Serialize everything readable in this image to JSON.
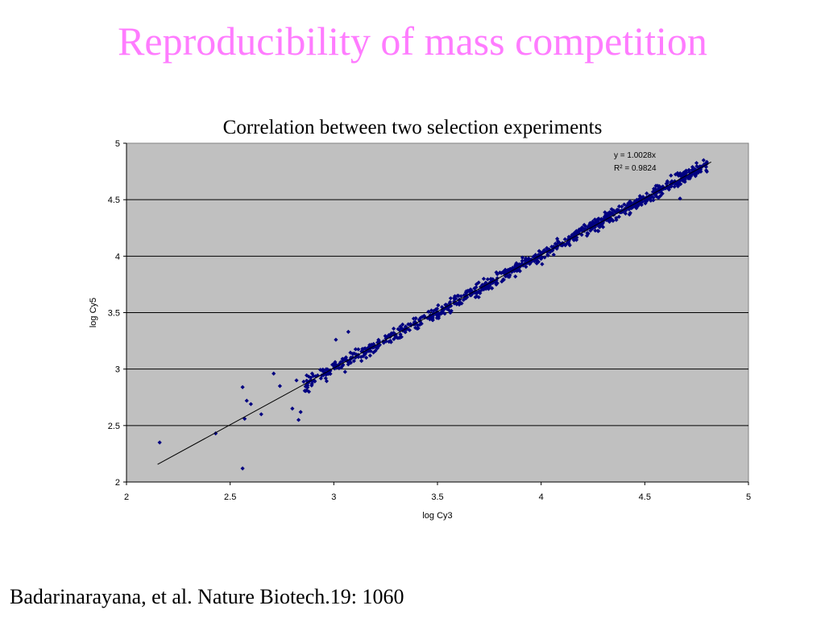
{
  "slide": {
    "title": "Reproducibility of mass competition",
    "citation": "Badarinarayana, et al. Nature Biotech.19: 1060"
  },
  "colors": {
    "title": "#ff7cff",
    "plot_background": "#c0c0c0",
    "marker": "#000080"
  },
  "chart_data": {
    "type": "scatter",
    "title": "Correlation between two selection experiments",
    "xlabel": "log Cy3",
    "ylabel": "log Cy5",
    "xlim": [
      2,
      5
    ],
    "ylim": [
      2,
      5
    ],
    "xticks": [
      "2",
      "2.5",
      "3",
      "3.5",
      "4",
      "4.5",
      "5"
    ],
    "yticks": [
      "2",
      "2.5",
      "3",
      "3.5",
      "4",
      "4.5",
      "5"
    ],
    "grid": "horizontal",
    "trendline": {
      "slope": 1.0028,
      "intercept": 0,
      "x_range": [
        2.15,
        4.82
      ]
    },
    "annotation": {
      "equation": "y = 1.0028x",
      "r_squared": "R² = 0.9824"
    },
    "outliers": [
      {
        "x": 2.16,
        "y": 2.35
      },
      {
        "x": 2.43,
        "y": 2.43
      },
      {
        "x": 2.56,
        "y": 2.84
      },
      {
        "x": 2.58,
        "y": 2.72
      },
      {
        "x": 2.6,
        "y": 2.69
      },
      {
        "x": 2.57,
        "y": 2.56
      },
      {
        "x": 2.56,
        "y": 2.12
      },
      {
        "x": 2.65,
        "y": 2.6
      },
      {
        "x": 2.71,
        "y": 2.96
      },
      {
        "x": 2.74,
        "y": 2.85
      },
      {
        "x": 2.8,
        "y": 2.65
      },
      {
        "x": 2.83,
        "y": 2.55
      },
      {
        "x": 2.84,
        "y": 2.62
      },
      {
        "x": 2.82,
        "y": 2.9
      },
      {
        "x": 2.88,
        "y": 2.8
      },
      {
        "x": 3.01,
        "y": 3.26
      },
      {
        "x": 3.07,
        "y": 3.33
      },
      {
        "x": 4.67,
        "y": 4.51
      },
      {
        "x": 4.75,
        "y": 4.73
      },
      {
        "x": 4.77,
        "y": 4.79
      },
      {
        "x": 4.8,
        "y": 4.82
      }
    ],
    "cloud": {
      "x_min": 2.85,
      "x_max": 4.8,
      "count": 900,
      "spread": 0.04
    }
  }
}
